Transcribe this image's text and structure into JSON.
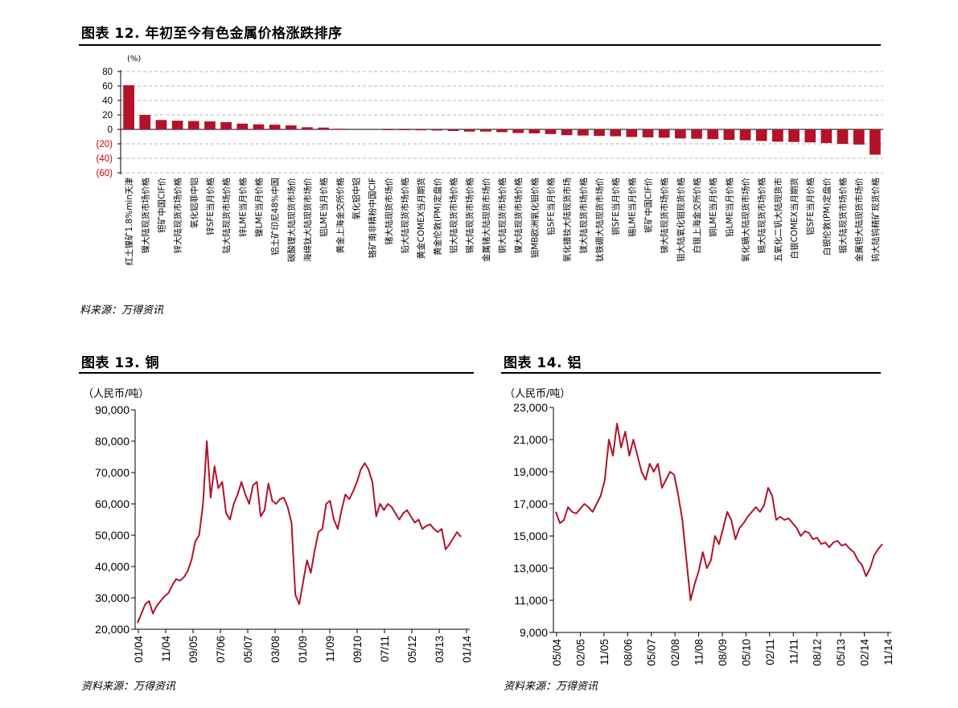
{
  "fig12": {
    "title": "图表 12. 年初至今有色金属价格涨跌排序",
    "source": "料来源：万得资讯"
  },
  "fig13": {
    "title": "图表 13. 铜",
    "source": "资料来源：万得资讯"
  },
  "fig14": {
    "title": "图表 14. 铝",
    "source": "资料来源：万得资讯"
  },
  "colors": {
    "bar": "#b2132a",
    "line": "#b2132a",
    "negative_tick": "#cc0000",
    "grid": "#a0a0a0"
  },
  "chart_data": [
    {
      "type": "bar",
      "unit_label": "(%)",
      "ylim": [
        -60,
        80
      ],
      "yticks": [
        "80",
        "60",
        "40",
        "20",
        "0",
        "(20)",
        "(40)",
        "(60)"
      ],
      "grid": "dashed horizontal",
      "categories": [
        "红土镍矿1.8%min天津",
        "镍大陆现货市场价格",
        "钽矿中国CIF价",
        "锌大陆现货市场价格",
        "氧化铝菲中铝",
        "锌SFE当月价格",
        "钴大陆现货市场价格",
        "锌LME当月价格",
        "镍LME当月价格",
        "铝土矿印尼48%中国",
        "碳酸锂大陆现货市场价",
        "海绵钛大陆现货市场价",
        "铝LME当月价格",
        "黄金上海金交所价格",
        "氧化铝中铝",
        "铬矿南非精粉中国CIF",
        "锗大陆现货市场价",
        "铅大陆现货市场价格",
        "黄金COMEX当月期货",
        "黄金伦敦(PM)定盘价",
        "铝大陆现货市场价格",
        "锡大陆现货市场价格",
        "金属锗大陆现货市场价",
        "铜大陆现货市场价格",
        "镍大陆现货市场价格",
        "钼MB欧洲氧化钼价格",
        "铅SFE当月价格",
        "氧化镨钕大陆现货市场",
        "镁大陆现货市场价格",
        "钛铁硼大陆现货市场价",
        "铜SFE当月价格",
        "锡LME当月价格",
        "铌矿中国CIF价",
        "锑大陆现货市场价格",
        "钼大陆氧化钼现货价格",
        "白银上海金交所价格",
        "铜LME当月价格",
        "铅LME当月价格",
        "氧化镝大陆现货市场价",
        "镉大陆现货市场价格",
        "五氧化二钒大陆现货市",
        "白银COMEX当月期货",
        "铝SFE当月价格",
        "白银伦敦(PM)定盘价",
        "铟大陆现货市场价格",
        "金属钽大陆现货市场价",
        "钨大陆钨精矿现货价格"
      ],
      "values": [
        61,
        20,
        13,
        12,
        11.5,
        11,
        10,
        8,
        7,
        6.5,
        5.5,
        3,
        2.5,
        1,
        0,
        0,
        -0.8,
        -1,
        -1.3,
        -1.6,
        -2.2,
        -3,
        -3,
        -3.8,
        -5,
        -5.5,
        -6.5,
        -8,
        -8.5,
        -9,
        -9.5,
        -10.5,
        -11,
        -11.5,
        -12.5,
        -13,
        -13.5,
        -14.5,
        -15,
        -16,
        -17,
        -17.5,
        -18,
        -19,
        -20,
        -21,
        -35
      ]
    },
    {
      "type": "line",
      "unit_label": "（人民币/吨）",
      "ylim": [
        20000,
        90000
      ],
      "yticks": [
        "90,000",
        "80,000",
        "70,000",
        "60,000",
        "50,000",
        "40,000",
        "30,000",
        "20,000"
      ],
      "xticks": [
        "01/04",
        "11/04",
        "09/05",
        "07/06",
        "05/07",
        "03/08",
        "01/09",
        "11/09",
        "09/10",
        "07/11",
        "05/12",
        "03/13",
        "01/14"
      ],
      "x_start": "2004-01",
      "series": [
        {
          "values": [
            22000,
            25000,
            28000,
            29000,
            25000,
            27500,
            29000,
            30500,
            31500,
            34000,
            36000,
            35500,
            36500,
            38500,
            42000,
            48000,
            50000,
            60000,
            80000,
            62000,
            72000,
            65000,
            67000,
            57000,
            55000,
            60000,
            63000,
            67000,
            63000,
            60000,
            66000,
            67000,
            56000,
            58000,
            66500,
            61000,
            60000,
            61500,
            62000,
            59000,
            54000,
            31000,
            28000,
            35000,
            42000,
            38000,
            45000,
            51000,
            52000,
            60000,
            61000,
            55000,
            52000,
            58000,
            63000,
            61500,
            64000,
            67000,
            71000,
            73000,
            71000,
            67000,
            56000,
            60000,
            58000,
            60000,
            59000,
            57000,
            55000,
            57000,
            58000,
            56000,
            54000,
            55000,
            52000,
            53000,
            53500,
            52000,
            51000,
            52000,
            45500,
            47000,
            49000,
            51000,
            49500
          ]
        }
      ]
    },
    {
      "type": "line",
      "unit_label": "（人民币/吨）",
      "ylim": [
        9000,
        23000
      ],
      "yticks": [
        "23,000",
        "21,000",
        "19,000",
        "17,000",
        "15,000",
        "13,000",
        "11,000",
        "9,000"
      ],
      "xticks": [
        "05/04",
        "02/05",
        "11/05",
        "08/06",
        "05/07",
        "02/08",
        "11/08",
        "08/09",
        "05/10",
        "02/11",
        "11/11",
        "08/12",
        "05/13",
        "02/14",
        "11/14"
      ],
      "x_start": "2004-05",
      "series": [
        {
          "values": [
            16500,
            15800,
            16000,
            16800,
            16500,
            16400,
            16700,
            17000,
            16800,
            16500,
            17000,
            17500,
            18500,
            21000,
            20000,
            22000,
            20500,
            21500,
            20000,
            21000,
            20000,
            19000,
            18500,
            19500,
            19000,
            19500,
            18000,
            18500,
            19000,
            18800,
            17500,
            16000,
            13500,
            11000,
            12000,
            12800,
            14000,
            13000,
            13500,
            15000,
            14500,
            15500,
            16500,
            16000,
            14800,
            15500,
            15800,
            16200,
            16500,
            16800,
            16500,
            16900,
            18000,
            17500,
            16000,
            16200,
            16000,
            16100,
            15800,
            15500,
            15000,
            15300,
            15200,
            14800,
            14900,
            14500,
            14600,
            14300,
            14600,
            14700,
            14400,
            14500,
            14200,
            14000,
            13500,
            13200,
            12500,
            13000,
            13800,
            14200,
            14500
          ]
        }
      ]
    }
  ]
}
